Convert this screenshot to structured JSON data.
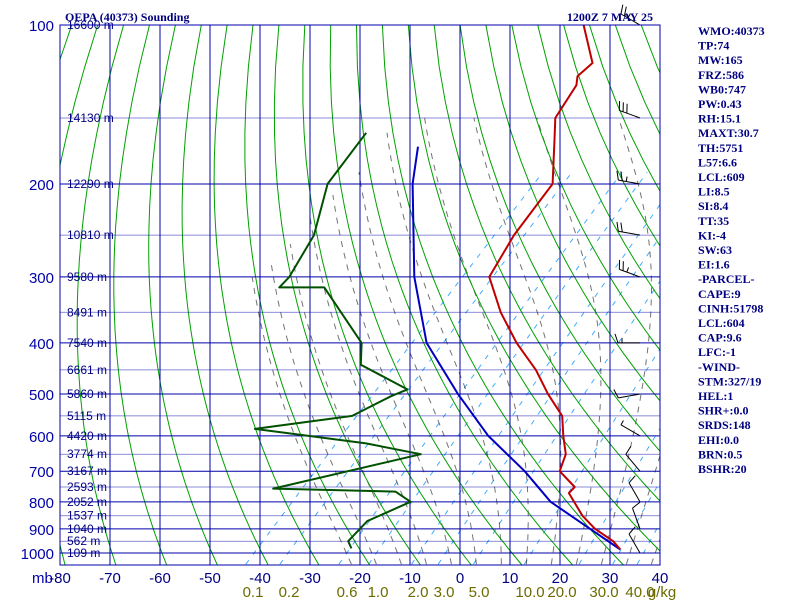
{
  "header": {
    "station": "OEPA (40373) Sounding",
    "time": "1200Z  7 MAY 25"
  },
  "indices": [
    "WMO:40373",
    "TP:74",
    "MW:165",
    "FRZ:586",
    "WB0:747",
    "PW:0.43",
    "RH:15.1",
    "MAXT:30.7",
    "TH:5751",
    "L57:6.6",
    "LCL:609",
    "LI:8.5",
    "SI:8.4",
    "TT:35",
    "KI:-4",
    "SW:63",
    "EI:1.6",
    "-PARCEL-",
    "CAPE:9",
    "CINH:51798",
    "LCL:604",
    "CAP:9.6",
    "LFC:-1",
    "-WIND-",
    "STM:327/19",
    "HEL:1",
    "SHR+:0.0",
    "SRDS:148",
    "EHI:0.0",
    "BRN:0.5",
    "BSHR:20"
  ],
  "colors": {
    "grid": "#0000aa",
    "dry_adiabat": "#00a000",
    "moist_adiabat": "#000000",
    "mixing_ratio": "#0090ff",
    "temperature": "#c00000",
    "dewpoint": "#005000",
    "parcel": "#0000c0"
  },
  "chart_data": {
    "type": "skew-t log-p sounding",
    "title": "OEPA (40373) Sounding",
    "pressure_unit": "mb",
    "pressure_ticks": [
      100,
      200,
      300,
      400,
      500,
      600,
      700,
      800,
      900,
      1000
    ],
    "temperature_ticks": [
      -80,
      -70,
      -60,
      -50,
      -40,
      -30,
      -20,
      -10,
      0,
      10,
      20,
      30,
      40
    ],
    "temperature_tick_labels": [
      "-80",
      "-70",
      "-60",
      "-50",
      "-40",
      "-30",
      "-20",
      "-10",
      "0",
      "10",
      "20",
      "30",
      "40"
    ],
    "mixing_ratio_labels": [
      "0.1",
      "0.2",
      "0.6",
      "1.0",
      "2.0",
      "3.0",
      "5.0",
      "10.0",
      "20.0",
      "30.0",
      "40.0"
    ],
    "mixing_ratio_unit": "g/kg",
    "heights": [
      {
        "p": 100,
        "label": "16600 m"
      },
      {
        "p": 150,
        "label": "14130 m"
      },
      {
        "p": 200,
        "label": "12290 m"
      },
      {
        "p": 250,
        "label": "10810 m"
      },
      {
        "p": 300,
        "label": "9580 m"
      },
      {
        "p": 350,
        "label": "8491 m"
      },
      {
        "p": 400,
        "label": "7540 m"
      },
      {
        "p": 450,
        "label": "6661 m"
      },
      {
        "p": 500,
        "label": "5860 m"
      },
      {
        "p": 550,
        "label": "5115 m"
      },
      {
        "p": 600,
        "label": "4420 m"
      },
      {
        "p": 650,
        "label": "3774 m"
      },
      {
        "p": 700,
        "label": "3167 m"
      },
      {
        "p": 750,
        "label": "2593 m"
      },
      {
        "p": 800,
        "label": "2052 m"
      },
      {
        "p": 850,
        "label": "1537 m"
      },
      {
        "p": 900,
        "label": "1040 m"
      },
      {
        "p": 950,
        "label": "562 m"
      },
      {
        "p": 1000,
        "label": "109 m"
      }
    ],
    "temperature": [
      {
        "p": 100,
        "t": -76
      },
      {
        "p": 118,
        "t": -67
      },
      {
        "p": 125,
        "t": -67.5
      },
      {
        "p": 130,
        "t": -66
      },
      {
        "p": 150,
        "t": -64
      },
      {
        "p": 165,
        "t": -60
      },
      {
        "p": 200,
        "t": -52
      },
      {
        "p": 250,
        "t": -50
      },
      {
        "p": 300,
        "t": -47
      },
      {
        "p": 350,
        "t": -38
      },
      {
        "p": 400,
        "t": -29
      },
      {
        "p": 450,
        "t": -20
      },
      {
        "p": 500,
        "t": -13
      },
      {
        "p": 550,
        "t": -6
      },
      {
        "p": 600,
        "t": -2
      },
      {
        "p": 650,
        "t": 2
      },
      {
        "p": 700,
        "t": 4
      },
      {
        "p": 750,
        "t": 10
      },
      {
        "p": 770,
        "t": 10
      },
      {
        "p": 850,
        "t": 17
      },
      {
        "p": 900,
        "t": 22
      },
      {
        "p": 950,
        "t": 28
      },
      {
        "p": 985,
        "t": 31
      }
    ],
    "dewpoint": [
      {
        "p": 160,
        "t": -99
      },
      {
        "p": 200,
        "t": -97
      },
      {
        "p": 250,
        "t": -90
      },
      {
        "p": 300,
        "t": -87
      },
      {
        "p": 314,
        "t": -87
      },
      {
        "p": 314,
        "t": -78
      },
      {
        "p": 400,
        "t": -60
      },
      {
        "p": 440,
        "t": -56
      },
      {
        "p": 490,
        "t": -42
      },
      {
        "p": 505,
        "t": -44
      },
      {
        "p": 550,
        "t": -48
      },
      {
        "p": 582,
        "t": -65
      },
      {
        "p": 620,
        "t": -40
      },
      {
        "p": 650,
        "t": -27
      },
      {
        "p": 755,
        "t": -50
      },
      {
        "p": 765,
        "t": -25
      },
      {
        "p": 800,
        "t": -20
      },
      {
        "p": 870,
        "t": -25
      },
      {
        "p": 950,
        "t": -25
      },
      {
        "p": 980,
        "t": -23
      }
    ],
    "parcel": [
      {
        "p": 170,
        "t": -86
      },
      {
        "p": 200,
        "t": -80
      },
      {
        "p": 300,
        "t": -62
      },
      {
        "p": 400,
        "t": -47
      },
      {
        "p": 500,
        "t": -31
      },
      {
        "p": 600,
        "t": -17
      },
      {
        "p": 700,
        "t": -3
      },
      {
        "p": 800,
        "t": 8
      },
      {
        "p": 900,
        "t": 21
      },
      {
        "p": 985,
        "t": 31
      }
    ],
    "wind_barbs": [
      {
        "p": 100,
        "dir": 300,
        "spd": 25
      },
      {
        "p": 150,
        "dir": 290,
        "spd": 30
      },
      {
        "p": 200,
        "dir": 280,
        "spd": 25
      },
      {
        "p": 250,
        "dir": 280,
        "spd": 20
      },
      {
        "p": 300,
        "dir": 290,
        "spd": 25
      },
      {
        "p": 400,
        "dir": 270,
        "spd": 15
      },
      {
        "p": 500,
        "dir": 260,
        "spd": 10
      },
      {
        "p": 600,
        "dir": 300,
        "spd": 5
      },
      {
        "p": 700,
        "dir": 320,
        "spd": 10
      },
      {
        "p": 800,
        "dir": 330,
        "spd": 10
      },
      {
        "p": 900,
        "dir": 340,
        "spd": 10
      },
      {
        "p": 1000,
        "dir": 330,
        "spd": 10
      }
    ]
  }
}
